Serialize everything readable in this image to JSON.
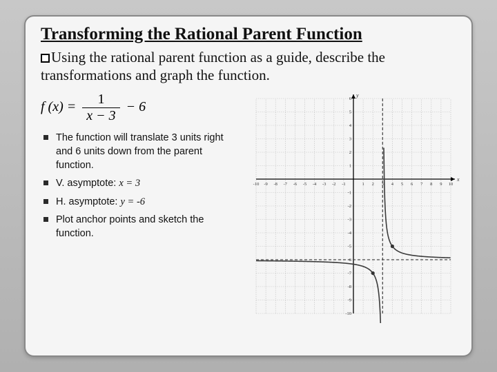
{
  "title": "Transforming the Rational Parent Function",
  "intro": "Using the rational parent function as a guide, describe the transformations and graph the function.",
  "formula": {
    "lhs": "f (x) =",
    "num": "1",
    "den": "x − 3",
    "tail": "− 6"
  },
  "bullets": {
    "b1": "The function will translate 3 units right and 6 units down from the parent function.",
    "b2_pre": "V. asymptote: ",
    "b2_math": "x = 3",
    "b3_pre": "H. asymptote: ",
    "b3_math": "y = -6",
    "b4": "Plot anchor points and sketch the function."
  },
  "graph": {
    "xmin": -10,
    "xmax": 10,
    "ymin": -10,
    "ymax": 6,
    "xticks": [
      -10,
      -9,
      -8,
      -7,
      -6,
      -5,
      -4,
      -3,
      -2,
      -1,
      1,
      2,
      3,
      4,
      5,
      6,
      7,
      8,
      9,
      10
    ],
    "yticks": [
      -10,
      -9,
      -8,
      -7,
      -6,
      -5,
      -4,
      -3,
      -2,
      -1,
      1,
      2,
      3,
      4,
      5,
      6
    ],
    "grid_color": "#bfbfbf",
    "axis_color": "#000000",
    "asym_color": "#4a4a4a",
    "curve_color": "#3a3a3a",
    "point_color": "#333333",
    "anchor_points": [
      [
        2,
        -7
      ],
      [
        4,
        -5
      ]
    ],
    "v_asym": 3,
    "h_asym": -6
  }
}
